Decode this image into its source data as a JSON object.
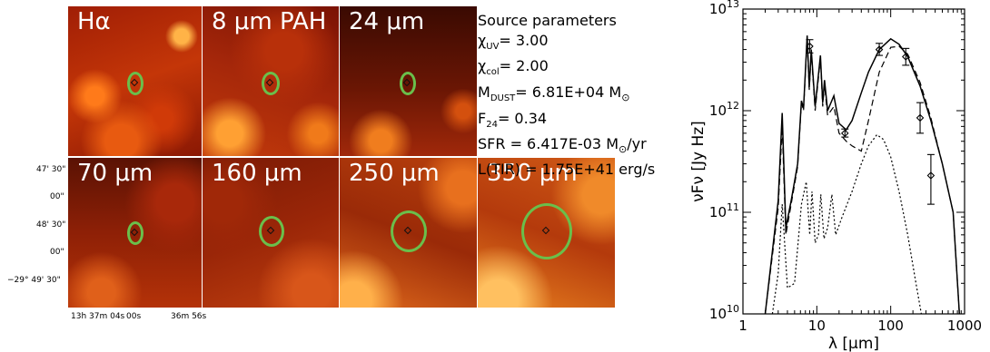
{
  "panels": [
    {
      "label": "Hα"
    },
    {
      "label": "8 μm PAH"
    },
    {
      "label": "24 μm"
    },
    {
      "label": "70 μm"
    },
    {
      "label": "160 μm"
    },
    {
      "label": "250 μm"
    },
    {
      "label": "350 μm"
    }
  ],
  "params": {
    "title": "Source parameters",
    "chi_uv": "χ",
    "chi_uv_sub": "UV",
    "chi_uv_val": "= 3.00",
    "chi_col": "χ",
    "chi_col_sub": "col",
    "chi_col_val": "= 2.00",
    "mdust": "M",
    "mdust_sub": "DUST",
    "mdust_val": "= 6.81E+04 M",
    "mdust_unit_sub": "⊙",
    "f24": "F",
    "f24_sub": "24",
    "f24_val": "= 0.34",
    "sfr": "SFR = 6.417E-03 M",
    "sfr_sub": "⊙",
    "sfr_unit": "/yr",
    "ltir": "L(TIR) = 1.75E+41 erg/s"
  },
  "dec_labels": [
    "47' 30\"",
    "00\"",
    "48' 30\"",
    "00\"",
    "−29° 49' 30\""
  ],
  "ra_labels": [
    "13h 37m 04s",
    "00s",
    "36m 56s"
  ],
  "chart_data": {
    "type": "line",
    "xlabel": "λ [μm]",
    "ylabel": "νFν [Jy Hz]",
    "xscale": "log",
    "yscale": "log",
    "xlim": [
      1,
      1000
    ],
    "ylim": [
      10000000000.0,
      10000000000000.0
    ],
    "x_ticks": [
      "1",
      "10",
      "100",
      "1000"
    ],
    "y_ticks": [
      "10^10",
      "10^11",
      "10^12",
      "10^13"
    ],
    "series": [
      {
        "style": "solid",
        "points": [
          [
            2,
            10000000000.0
          ],
          [
            3,
            130000000000.0
          ],
          [
            3.4,
            950000000000.0
          ],
          [
            3.8,
            70000000000.0
          ],
          [
            4.5,
            130000000000.0
          ],
          [
            5.5,
            300000000000.0
          ],
          [
            6.2,
            1250000000000.0
          ],
          [
            6.6,
            1050000000000.0
          ],
          [
            7.4,
            5500000000000.0
          ],
          [
            7.9,
            1700000000000.0
          ],
          [
            8.4,
            4000000000000.0
          ],
          [
            9.5,
            1100000000000.0
          ],
          [
            11.2,
            3500000000000.0
          ],
          [
            12.0,
            1200000000000.0
          ],
          [
            12.7,
            2000000000000.0
          ],
          [
            14,
            1000000000000.0
          ],
          [
            17,
            1400000000000.0
          ],
          [
            20,
            750000000000.0
          ],
          [
            25,
            650000000000.0
          ],
          [
            30,
            800000000000.0
          ],
          [
            40,
            1500000000000.0
          ],
          [
            50,
            2400000000000.0
          ],
          [
            70,
            4000000000000.0
          ],
          [
            100,
            5100000000000.0
          ],
          [
            130,
            4500000000000.0
          ],
          [
            170,
            3400000000000.0
          ],
          [
            250,
            1750000000000.0
          ],
          [
            350,
            800000000000.0
          ],
          [
            500,
            300000000000.0
          ],
          [
            700,
            100000000000.0
          ],
          [
            850,
            10000000000.0
          ]
        ]
      },
      {
        "style": "dashed",
        "points": [
          [
            2,
            10000000000.0
          ],
          [
            3,
            110000000000.0
          ],
          [
            3.4,
            700000000000.0
          ],
          [
            3.8,
            60000000000.0
          ],
          [
            4.5,
            120000000000.0
          ],
          [
            5.5,
            280000000000.0
          ],
          [
            6.2,
            1200000000000.0
          ],
          [
            6.6,
            1000000000000.0
          ],
          [
            7.4,
            5200000000000.0
          ],
          [
            7.9,
            1600000000000.0
          ],
          [
            8.4,
            3800000000000.0
          ],
          [
            9.5,
            1000000000000.0
          ],
          [
            11.2,
            3300000000000.0
          ],
          [
            12,
            1100000000000.0
          ],
          [
            12.7,
            1800000000000.0
          ],
          [
            14,
            900000000000.0
          ],
          [
            17,
            1100000000000.0
          ],
          [
            20,
            600000000000.0
          ],
          [
            25,
            500000000000.0
          ],
          [
            30,
            450000000000.0
          ],
          [
            40,
            400000000000.0
          ],
          [
            50,
            800000000000.0
          ],
          [
            70,
            2400000000000.0
          ],
          [
            100,
            4200000000000.0
          ],
          [
            130,
            4300000000000.0
          ],
          [
            170,
            3600000000000.0
          ],
          [
            250,
            1900000000000.0
          ],
          [
            350,
            850000000000.0
          ],
          [
            500,
            300000000000.0
          ],
          [
            700,
            100000000000.0
          ],
          [
            850,
            10000000000.0
          ]
        ]
      },
      {
        "style": "dotted",
        "points": [
          [
            2.5,
            10000000000.0
          ],
          [
            3,
            25000000000.0
          ],
          [
            3.4,
            120000000000.0
          ],
          [
            4,
            18000000000.0
          ],
          [
            5,
            20000000000.0
          ],
          [
            6.2,
            120000000000.0
          ],
          [
            7.2,
            200000000000.0
          ],
          [
            8,
            60000000000.0
          ],
          [
            8.6,
            160000000000.0
          ],
          [
            9.5,
            50000000000.0
          ],
          [
            10.5,
            60000000000.0
          ],
          [
            11.3,
            150000000000.0
          ],
          [
            12.5,
            55000000000.0
          ],
          [
            14,
            70000000000.0
          ],
          [
            16,
            150000000000.0
          ],
          [
            18,
            60000000000.0
          ],
          [
            22,
            90000000000.0
          ],
          [
            30,
            160000000000.0
          ],
          [
            40,
            300000000000.0
          ],
          [
            50,
            450000000000.0
          ],
          [
            65,
            580000000000.0
          ],
          [
            80,
            520000000000.0
          ],
          [
            100,
            350000000000.0
          ],
          [
            130,
            160000000000.0
          ],
          [
            170,
            60000000000.0
          ],
          [
            220,
            20000000000.0
          ],
          [
            260,
            10000000000.0
          ]
        ]
      }
    ],
    "observations": [
      {
        "x": 8,
        "y": 4300000000000.0,
        "err_lo": 3700000000000.0,
        "err_hi": 5000000000000.0
      },
      {
        "x": 24,
        "y": 600000000000.0,
        "err_lo": 550000000000.0,
        "err_hi": 660000000000.0
      },
      {
        "x": 70,
        "y": 4000000000000.0,
        "err_lo": 3500000000000.0,
        "err_hi": 4600000000000.0
      },
      {
        "x": 160,
        "y": 3400000000000.0,
        "err_lo": 2800000000000.0,
        "err_hi": 4100000000000.0
      },
      {
        "x": 250,
        "y": 850000000000.0,
        "err_lo": 600000000000.0,
        "err_hi": 1200000000000.0
      },
      {
        "x": 350,
        "y": 230000000000.0,
        "err_lo": 120000000000.0,
        "err_hi": 370000000000.0
      }
    ]
  }
}
